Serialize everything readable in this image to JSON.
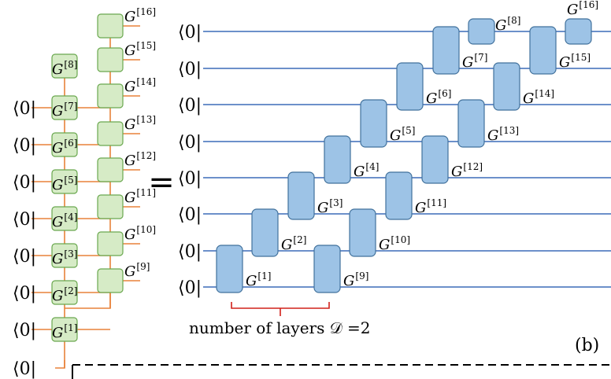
{
  "ket_label": "⟨0|",
  "equals_sign": "=",
  "gate_symbol": "G",
  "left_panel": {
    "chain_a": [
      "1",
      "2",
      "3",
      "4",
      "5",
      "6",
      "7",
      "8"
    ],
    "chain_b": [
      "9",
      "10",
      "11",
      "12",
      "13",
      "14",
      "15",
      "16"
    ]
  },
  "right_panel": {
    "layer1": [
      "1",
      "2",
      "3",
      "4",
      "5",
      "6",
      "7",
      "8"
    ],
    "layer2": [
      "9",
      "10",
      "11",
      "12",
      "13",
      "14",
      "15",
      "16"
    ]
  },
  "layers_caption": "number of layers 𝒟 =2",
  "panel_label": "(b)",
  "colors": {
    "wire": "#e8823a",
    "green_fill": "#d6ebc6",
    "green_stroke": "#6aa84f",
    "circuit_line": "#3b6cb8",
    "blue_fill": "#9dc3e6",
    "blue_stroke": "#41719c",
    "bracket": "#d0201a"
  }
}
